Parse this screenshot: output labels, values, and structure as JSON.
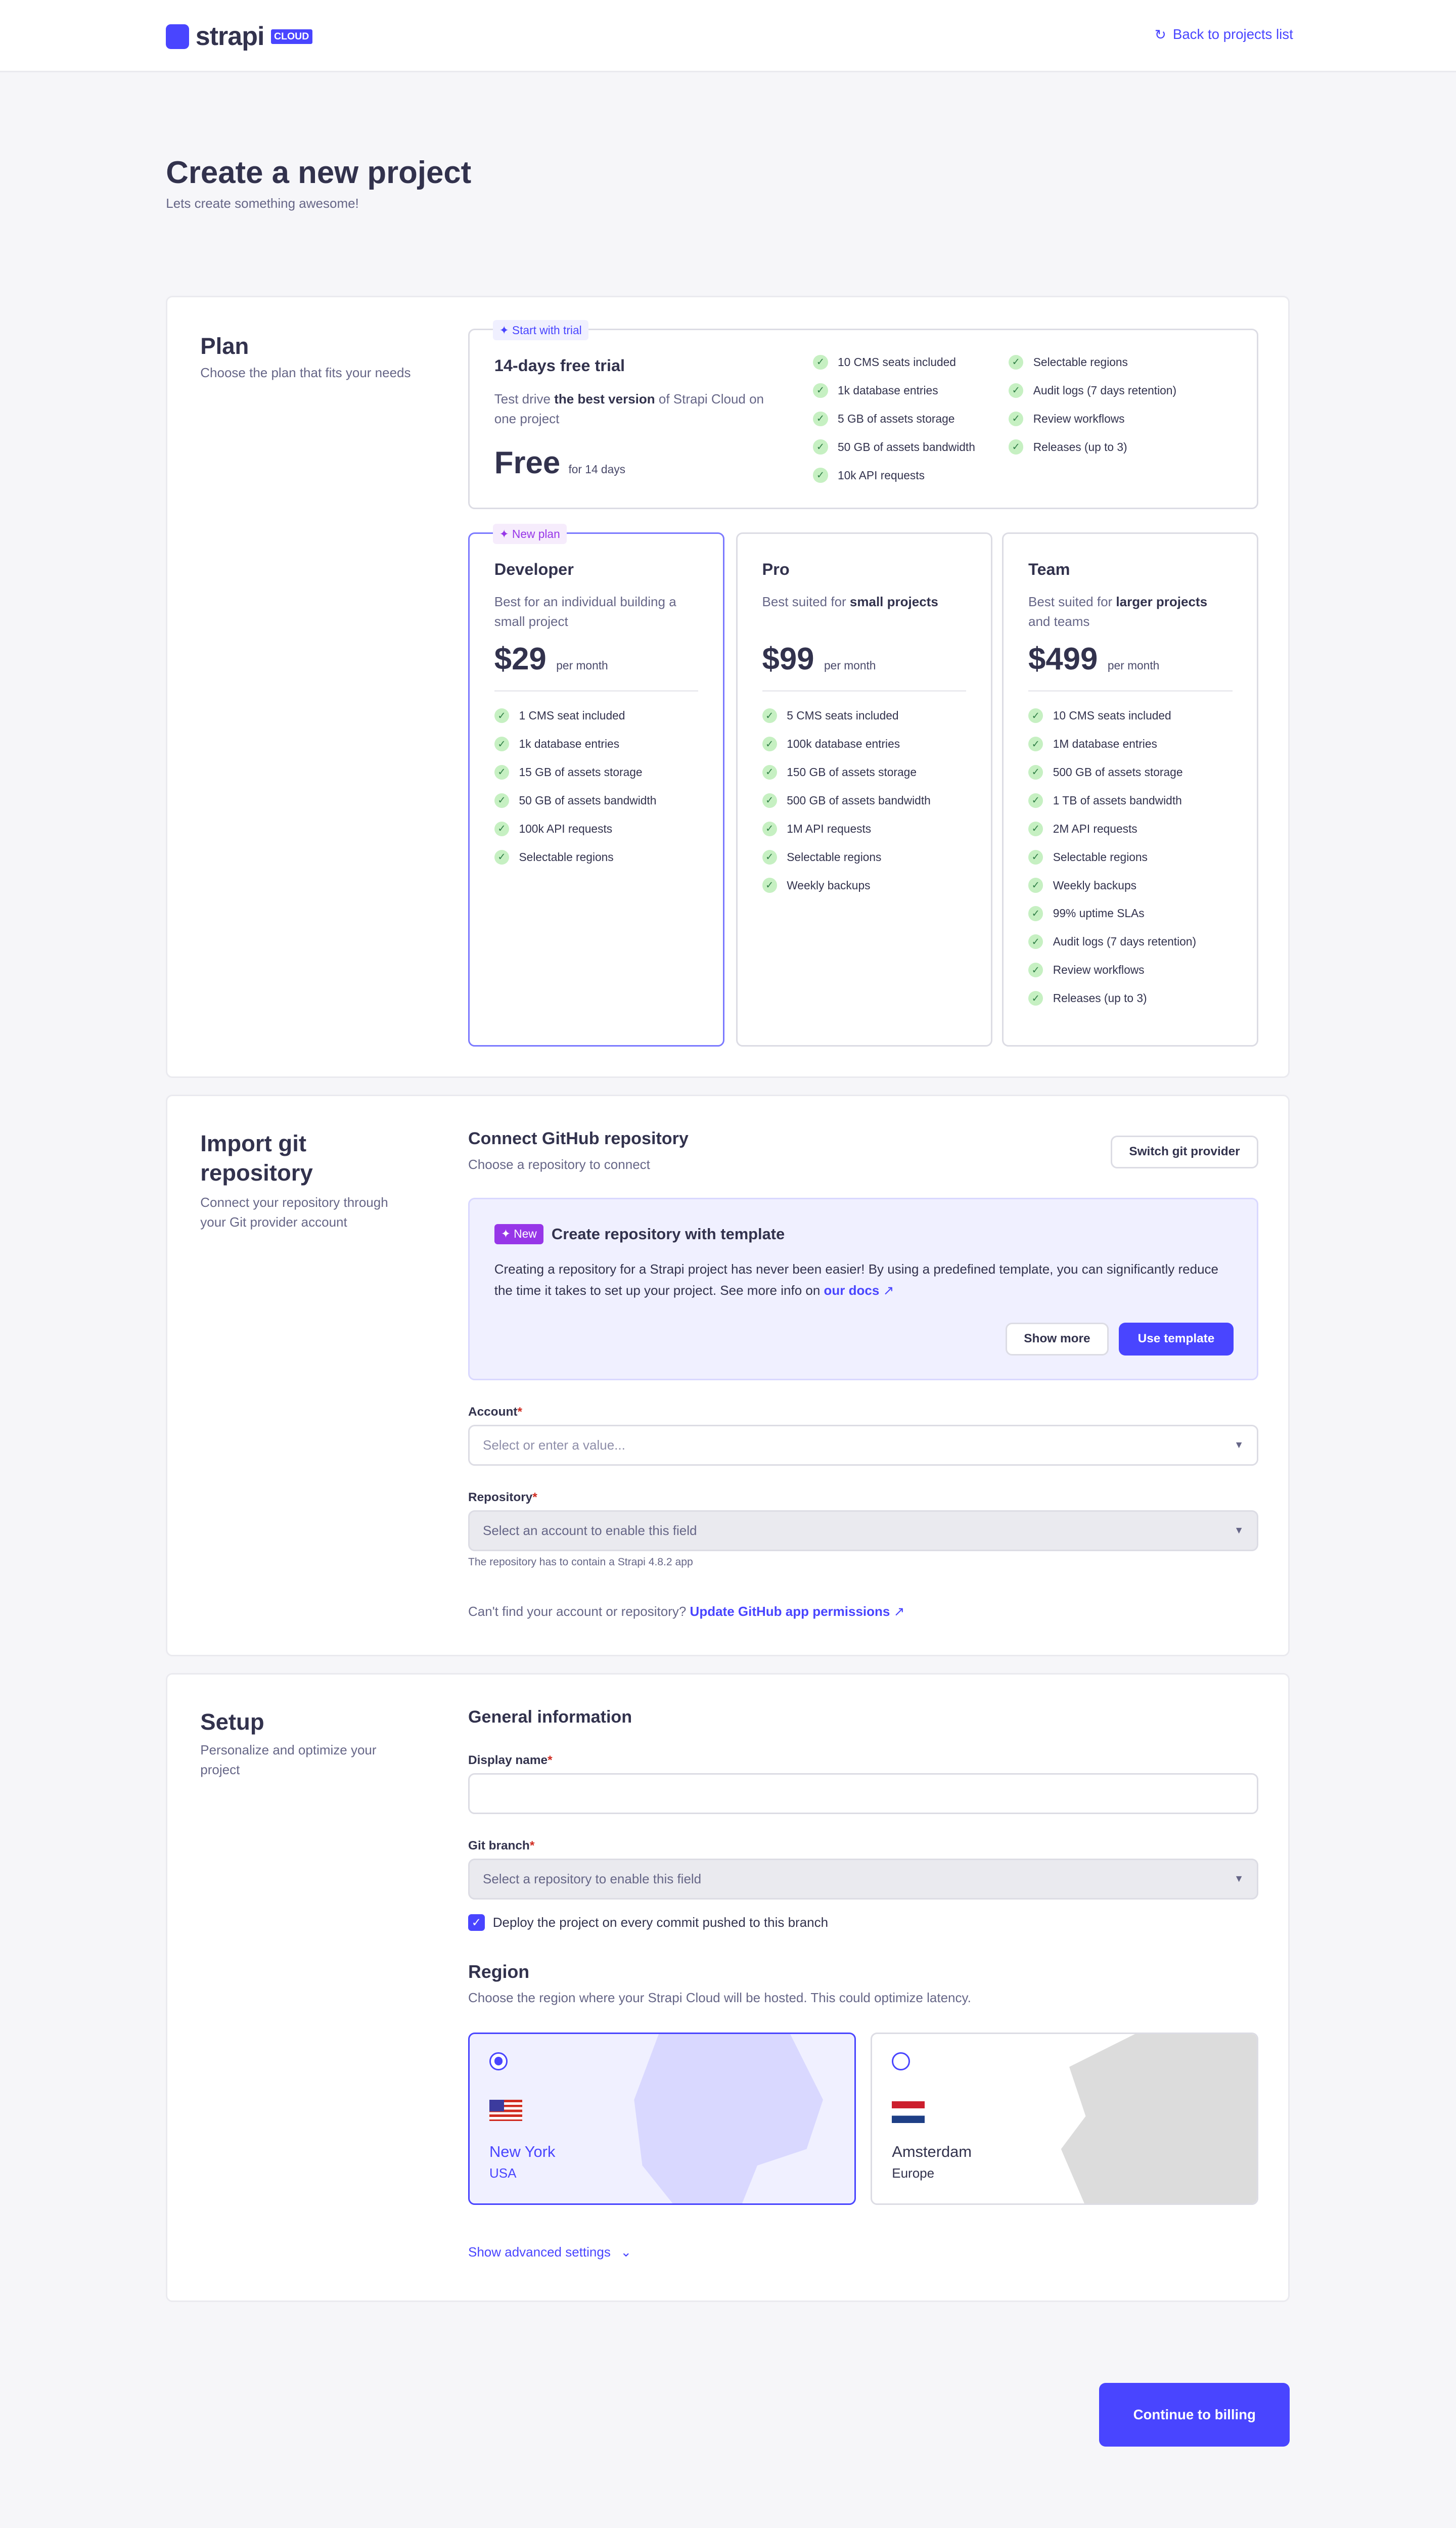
{
  "header": {
    "logo_text": "strapi",
    "logo_badge": "CLOUD",
    "back_link": "Back to projects list"
  },
  "page": {
    "title": "Create a new project",
    "subtitle": "Lets create something awesome!"
  },
  "plan": {
    "title": "Plan",
    "description": "Choose the plan that fits your needs",
    "trial": {
      "tag": "Start with trial",
      "name": "14-days free trial",
      "desc_prefix": "Test drive ",
      "desc_bold": "the best version",
      "desc_suffix": " of Strapi Cloud on one project",
      "price": "Free",
      "price_note": "for 14 days",
      "features_left": [
        "10 CMS seats included",
        "1k database entries",
        "5 GB of assets storage",
        "50 GB of assets bandwidth",
        "10k API requests"
      ],
      "features_right": [
        "Selectable regions",
        "Audit logs (7 days retention)",
        "Review workflows",
        "Releases (up to 3)"
      ]
    },
    "plans": [
      {
        "tag": "New plan",
        "name": "Developer",
        "desc_prefix": "Best for an individual building a small project",
        "desc_bold": "",
        "desc_suffix": "",
        "price": "$29",
        "period": "per month",
        "selected": true,
        "features": [
          "1 CMS seat included",
          "1k database entries",
          "15 GB of assets storage",
          "50 GB of assets bandwidth",
          "100k API requests",
          "Selectable regions"
        ]
      },
      {
        "name": "Pro",
        "desc_prefix": "Best suited for ",
        "desc_bold": "small projects",
        "desc_suffix": "",
        "price": "$99",
        "period": "per month",
        "selected": false,
        "features": [
          "5 CMS seats included",
          "100k database entries",
          "150 GB of assets storage",
          "500 GB of assets bandwidth",
          "1M API requests",
          "Selectable regions",
          "Weekly backups"
        ]
      },
      {
        "name": "Team",
        "desc_prefix": "Best suited for ",
        "desc_bold": "larger projects",
        "desc_suffix": " and teams",
        "price": "$499",
        "period": "per month",
        "selected": false,
        "features": [
          "10 CMS seats included",
          "1M database entries",
          "500 GB of assets storage",
          "1 TB of assets bandwidth",
          "2M API requests",
          "Selectable regions",
          "Weekly backups",
          "99% uptime SLAs",
          "Audit logs (7 days retention)",
          "Review workflows",
          "Releases (up to 3)"
        ]
      }
    ]
  },
  "git": {
    "title": "Import git repository",
    "description": "Connect your repository through your Git provider account",
    "heading": "Connect GitHub repository",
    "subheading": "Choose a repository to connect",
    "switch_button": "Switch git provider",
    "template": {
      "badge": "New",
      "title": "Create repository with template",
      "text": "Creating a repository for a Strapi project has never been easier! By using a predefined template, you can significantly reduce the time it takes to set up your project. See more info on ",
      "link": "our docs",
      "show_more": "Show more",
      "use_template": "Use template"
    },
    "account_label": "Account",
    "account_placeholder": "Select or enter a value...",
    "repo_label": "Repository",
    "repo_placeholder": "Select an account to enable this field",
    "repo_hint": "The repository has to contain a Strapi 4.8.2 app",
    "help_text": "Can't find your account or repository?",
    "help_link": "Update GitHub app permissions"
  },
  "setup": {
    "title": "Setup",
    "description": "Personalize and optimize your project",
    "general": "General information",
    "display_name_label": "Display name",
    "display_name_value": "",
    "branch_label": "Git branch",
    "branch_placeholder": "Select a repository to enable this field",
    "deploy_checkbox": "Deploy the project on every commit pushed to this branch",
    "deploy_checked": true,
    "region_title": "Region",
    "region_desc": "Choose the region where your Strapi Cloud will be hosted. This could optimize latency.",
    "regions": [
      {
        "city": "New York",
        "area": "USA",
        "selected": true,
        "flag": "us-flag-icon"
      },
      {
        "city": "Amsterdam",
        "area": "Europe",
        "selected": false,
        "flag": "nl-flag-icon"
      }
    ],
    "advanced": "Show advanced settings"
  },
  "footer": {
    "continue": "Continue to billing"
  },
  "colors": {
    "primary": "#4945ff",
    "text": "#32324d",
    "muted": "#666687",
    "success_bg": "#c6f0c2",
    "new_badge": "#9736e8"
  }
}
